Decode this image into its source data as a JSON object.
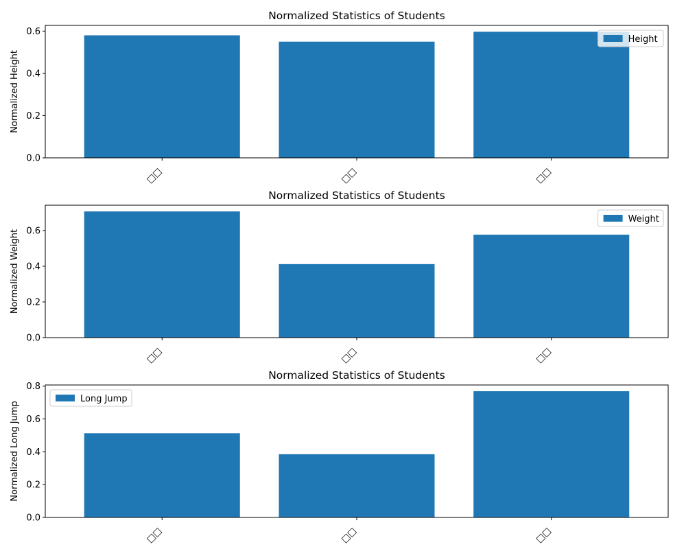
{
  "chart_data": [
    {
      "type": "bar",
      "title": "Normalized Statistics of Students",
      "xlabel": "",
      "ylabel": "Normalized Height",
      "categories": [
        "□□",
        "□□",
        "□□"
      ],
      "series": [
        {
          "name": "Height",
          "values": [
            0.58,
            0.55,
            0.597
          ]
        }
      ],
      "ylim": [
        0,
        0.627
      ],
      "yticks": [
        0.0,
        0.2,
        0.4,
        0.6
      ],
      "grid": false,
      "legend": "upper right",
      "color": "#1f77b4"
    },
    {
      "type": "bar",
      "title": "Normalized Statistics of Students",
      "xlabel": "",
      "ylabel": "Normalized Weight",
      "categories": [
        "□□",
        "□□",
        "□□"
      ],
      "series": [
        {
          "name": "Weight",
          "values": [
            0.707,
            0.412,
            0.577
          ]
        }
      ],
      "ylim": [
        0,
        0.742
      ],
      "yticks": [
        0.0,
        0.2,
        0.4,
        0.6
      ],
      "grid": false,
      "legend": "upper right",
      "color": "#1f77b4"
    },
    {
      "type": "bar",
      "title": "Normalized Statistics of Students",
      "xlabel": "",
      "ylabel": "Normalized Long Jump",
      "categories": [
        "□□",
        "□□",
        "□□"
      ],
      "series": [
        {
          "name": "Long Jump",
          "values": [
            0.513,
            0.385,
            0.769
          ]
        }
      ],
      "ylim": [
        0,
        0.807
      ],
      "yticks": [
        0.0,
        0.2,
        0.4,
        0.6,
        0.8
      ],
      "grid": false,
      "legend": "upper left",
      "color": "#1f77b4"
    }
  ]
}
